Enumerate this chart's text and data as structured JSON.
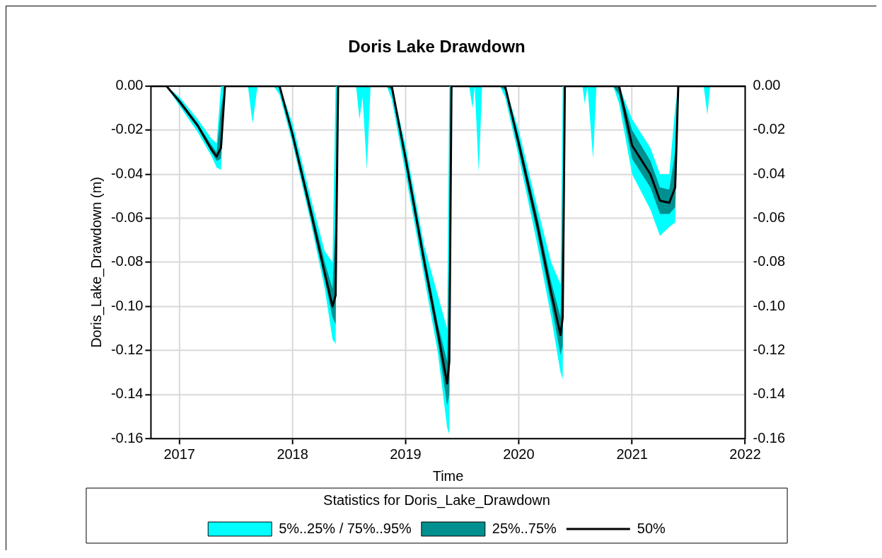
{
  "chart_data": {
    "type": "line",
    "title": "Doris Lake Drawdown",
    "xlabel": "Time",
    "ylabel": "Doris_Lake_Drawdown (m)",
    "legend_title": "Statistics for Doris_Lake_Drawdown",
    "legend": "bottom",
    "grid": true,
    "xlim": [
      "2016-10-01",
      "2022-01-01"
    ],
    "xticks": [
      "2017",
      "2018",
      "2019",
      "2020",
      "2021",
      "2022"
    ],
    "ylim": [
      -0.16,
      0
    ],
    "yticks": [
      {
        "value": 0,
        "label": "0.00"
      },
      {
        "value": -0.02,
        "label": "-0.02"
      },
      {
        "value": -0.04,
        "label": "-0.04"
      },
      {
        "value": -0.06,
        "label": "-0.06"
      },
      {
        "value": -0.08,
        "label": "-0.08"
      },
      {
        "value": -0.1,
        "label": "-0.10"
      },
      {
        "value": -0.12,
        "label": "-0.12"
      },
      {
        "value": -0.14,
        "label": "-0.14"
      },
      {
        "value": -0.16,
        "label": "-0.16"
      }
    ],
    "y2lim": [
      -0.16,
      0
    ],
    "y2ticks": [
      {
        "value": 0,
        "label": "0.00"
      },
      {
        "value": -0.02,
        "label": "-0.02"
      },
      {
        "value": -0.04,
        "label": "-0.04"
      },
      {
        "value": -0.06,
        "label": "-0.06"
      },
      {
        "value": -0.08,
        "label": "-0.08"
      },
      {
        "value": -0.1,
        "label": "-0.10"
      },
      {
        "value": -0.12,
        "label": "-0.12"
      },
      {
        "value": -0.14,
        "label": "-0.14"
      },
      {
        "value": -0.16,
        "label": "-0.16"
      }
    ],
    "x": [
      "2016-10-01",
      "2016-11-20",
      "2017-01-01",
      "2017-03-01",
      "2017-04-15",
      "2017-05-01",
      "2017-05-15",
      "2017-05-28",
      "2017-08-10",
      "2017-08-25",
      "2017-09-10",
      "2017-11-01",
      "2017-11-20",
      "2018-01-01",
      "2018-03-01",
      "2018-04-15",
      "2018-05-10",
      "2018-05-20",
      "2018-05-28",
      "2018-07-25",
      "2018-08-05",
      "2018-08-15",
      "2018-08-29",
      "2018-09-10",
      "2018-11-01",
      "2018-11-17",
      "2019-01-01",
      "2019-03-01",
      "2019-04-15",
      "2019-05-15",
      "2019-05-22",
      "2019-05-29",
      "2019-07-25",
      "2019-08-05",
      "2019-08-12",
      "2019-08-25",
      "2019-09-05",
      "2019-11-01",
      "2019-11-18",
      "2020-01-01",
      "2020-03-01",
      "2020-04-15",
      "2020-05-15",
      "2020-05-22",
      "2020-05-29",
      "2020-07-25",
      "2020-08-01",
      "2020-08-10",
      "2020-08-28",
      "2020-09-08",
      "2020-11-01",
      "2020-11-20",
      "2021-01-01",
      "2021-03-01",
      "2021-04-01",
      "2021-05-01",
      "2021-05-20",
      "2021-05-30",
      "2021-08-20",
      "2021-09-01",
      "2021-09-10",
      "2022-01-01"
    ],
    "series": [
      {
        "name": "5%..25% / 75%..95%",
        "color": "#00ffff",
        "values": [
          null,
          null,
          null,
          null,
          null,
          null,
          null,
          null,
          null,
          null,
          null,
          null,
          null,
          null,
          null,
          null,
          null,
          null,
          null,
          null,
          null,
          null,
          null,
          null,
          null,
          null,
          null,
          null,
          null,
          null,
          null,
          null,
          null,
          null,
          null,
          null,
          null,
          null,
          null,
          null,
          null,
          null,
          null,
          null,
          null,
          null,
          null,
          null,
          null,
          null,
          null,
          null,
          null,
          null,
          null,
          null,
          null,
          null,
          null,
          null,
          null,
          null
        ],
        "upper": [
          0,
          0,
          -0.005,
          -0.015,
          -0.024,
          -0.026,
          0,
          0,
          0,
          0,
          0,
          0,
          0,
          -0.017,
          -0.051,
          -0.075,
          -0.08,
          0,
          0,
          0,
          0,
          0,
          0,
          0,
          0,
          0,
          -0.027,
          -0.072,
          -0.095,
          -0.11,
          0,
          0,
          0,
          0,
          0,
          0,
          0,
          0,
          0,
          -0.02,
          -0.055,
          -0.08,
          -0.09,
          0,
          0,
          0,
          0,
          0,
          0,
          0,
          0,
          0,
          -0.015,
          -0.028,
          -0.04,
          -0.04,
          -0.01,
          0,
          0,
          0,
          0,
          0
        ],
        "lower": [
          0,
          0,
          -0.009,
          -0.021,
          -0.032,
          -0.037,
          -0.038,
          0,
          0,
          -0.017,
          0,
          0,
          -0.004,
          -0.026,
          -0.062,
          -0.092,
          -0.115,
          -0.117,
          0,
          0,
          -0.015,
          -0.005,
          -0.038,
          0,
          0,
          -0.006,
          -0.04,
          -0.086,
          -0.121,
          -0.155,
          -0.158,
          0,
          0,
          -0.01,
          0,
          -0.039,
          0,
          0,
          -0.005,
          -0.032,
          -0.072,
          -0.105,
          -0.13,
          -0.133,
          0,
          0,
          -0.008,
          0,
          -0.033,
          0,
          0,
          -0.008,
          -0.04,
          -0.056,
          -0.068,
          -0.064,
          -0.062,
          0,
          0,
          -0.013,
          0,
          0
        ]
      },
      {
        "name": "25%..75%",
        "color": "#009090",
        "values": [
          null,
          null,
          null,
          null,
          null,
          null,
          null,
          null,
          null,
          null,
          null,
          null,
          null,
          null,
          null,
          null,
          null,
          null,
          null,
          null,
          null,
          null,
          null,
          null,
          null,
          null,
          null,
          null,
          null,
          null,
          null,
          null,
          null,
          null,
          null,
          null,
          null,
          null,
          null,
          null,
          null,
          null,
          null,
          null,
          null,
          null,
          null,
          null,
          null,
          null,
          null,
          null,
          null,
          null,
          null,
          null,
          null,
          null,
          null,
          null,
          null,
          null
        ],
        "upper": [
          0,
          0,
          -0.006,
          -0.017,
          -0.027,
          -0.03,
          -0.01,
          0,
          0,
          0,
          0,
          0,
          0,
          -0.02,
          -0.054,
          -0.08,
          -0.092,
          -0.06,
          0,
          0,
          0,
          0,
          0,
          0,
          0,
          0,
          -0.03,
          -0.075,
          -0.108,
          -0.125,
          -0.08,
          0,
          0,
          0,
          0,
          0,
          0,
          0,
          0,
          -0.023,
          -0.059,
          -0.089,
          -0.105,
          -0.06,
          0,
          0,
          0,
          0,
          0,
          0,
          0,
          0,
          -0.02,
          -0.034,
          -0.046,
          -0.047,
          -0.03,
          0,
          0,
          0,
          0,
          0
        ],
        "lower": [
          0,
          0,
          -0.008,
          -0.019,
          -0.03,
          -0.034,
          -0.033,
          0,
          0,
          0,
          0,
          0,
          0,
          -0.024,
          -0.06,
          -0.088,
          -0.105,
          -0.108,
          0,
          0,
          0,
          0,
          0,
          0,
          0,
          -0.002,
          -0.036,
          -0.082,
          -0.116,
          -0.145,
          -0.14,
          0,
          0,
          0,
          0,
          0,
          0,
          0,
          -0.002,
          -0.029,
          -0.067,
          -0.099,
          -0.122,
          -0.118,
          0,
          0,
          0,
          0,
          0,
          0,
          0,
          -0.004,
          -0.033,
          -0.046,
          -0.058,
          -0.058,
          -0.055,
          0,
          0,
          0,
          0,
          0
        ]
      },
      {
        "name": "50%",
        "type": "line",
        "color": "#000000",
        "values": [
          0,
          0,
          -0.007,
          -0.018,
          -0.029,
          -0.032,
          -0.028,
          0,
          0,
          0,
          0,
          0,
          0,
          -0.022,
          -0.057,
          -0.085,
          -0.1,
          -0.095,
          0,
          0,
          0,
          0,
          0,
          0,
          0,
          0,
          -0.033,
          -0.079,
          -0.112,
          -0.135,
          -0.125,
          0,
          0,
          0,
          0,
          0,
          0,
          0,
          0,
          -0.026,
          -0.063,
          -0.094,
          -0.113,
          -0.105,
          0,
          0,
          0,
          0,
          0,
          0,
          0,
          0,
          -0.027,
          -0.04,
          -0.052,
          -0.053,
          -0.046,
          0,
          0,
          0,
          0,
          0
        ]
      }
    ]
  }
}
